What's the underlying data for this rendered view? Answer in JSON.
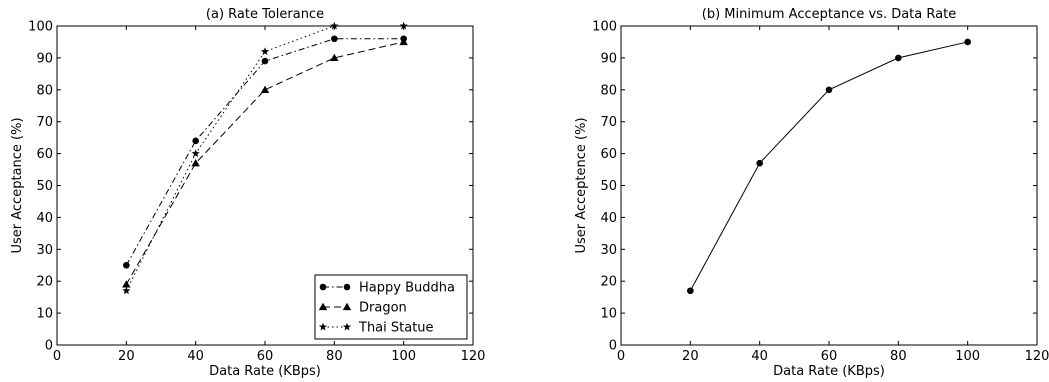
{
  "chart_data": [
    {
      "type": "line",
      "title": "(a) Rate Tolerance",
      "xlabel": "Data Rate (KBps)",
      "ylabel": "User Acceptance (%)",
      "xlim": [
        0,
        120
      ],
      "ylim": [
        0,
        100
      ],
      "xticks": [
        0,
        20,
        40,
        60,
        80,
        100,
        120
      ],
      "yticks": [
        0,
        10,
        20,
        30,
        40,
        50,
        60,
        70,
        80,
        90,
        100
      ],
      "grid": false,
      "legend_position": "bottom-right",
      "x": [
        20,
        40,
        60,
        80,
        100
      ],
      "series": [
        {
          "name": "Happy Buddha",
          "marker": "circle",
          "linestyle": "dashdot",
          "values": [
            25,
            64,
            89,
            96,
            96
          ]
        },
        {
          "name": "Dragon",
          "marker": "triangle",
          "linestyle": "dashed",
          "values": [
            19,
            57,
            80,
            90,
            95
          ]
        },
        {
          "name": "Thai Statue",
          "marker": "star",
          "linestyle": "dotted",
          "values": [
            17,
            60,
            92,
            100,
            100
          ]
        }
      ]
    },
    {
      "type": "line",
      "title": "(b) Minimum Acceptance vs. Data Rate",
      "xlabel": "Data Rate (KBps)",
      "ylabel": "User Acceptence (%)",
      "xlim": [
        0,
        120
      ],
      "ylim": [
        0,
        100
      ],
      "xticks": [
        0,
        20,
        40,
        60,
        80,
        100,
        120
      ],
      "yticks": [
        0,
        10,
        20,
        30,
        40,
        50,
        60,
        70,
        80,
        90,
        100
      ],
      "grid": false,
      "legend_position": "none",
      "x": [
        20,
        40,
        60,
        80,
        100
      ],
      "series": [
        {
          "marker": "circle",
          "linestyle": "solid",
          "values": [
            17,
            57,
            80,
            90,
            95
          ]
        }
      ]
    }
  ]
}
